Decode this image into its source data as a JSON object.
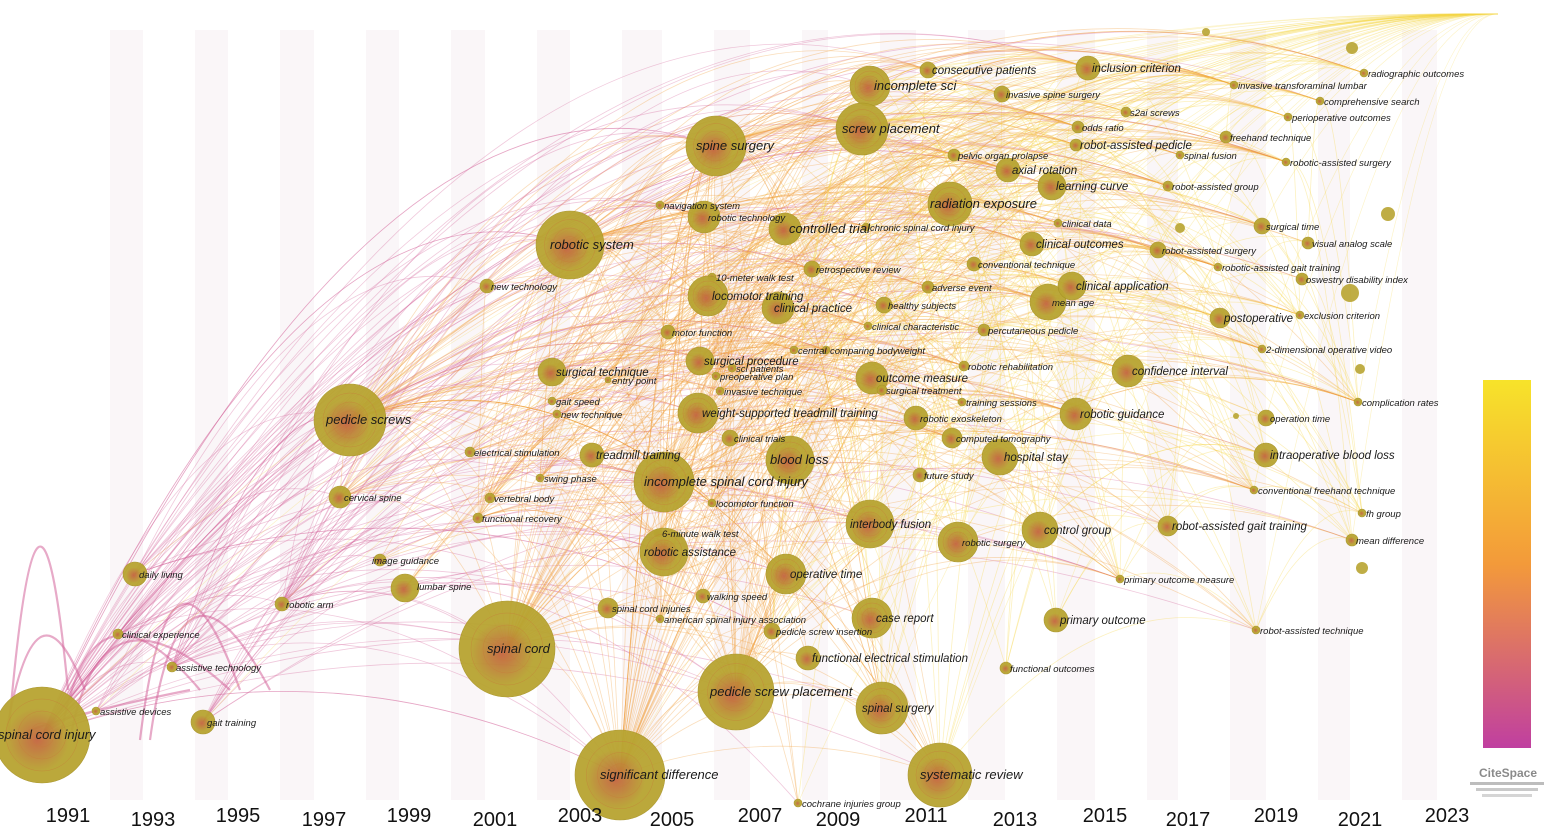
{
  "years": [
    "1991",
    "1993",
    "1995",
    "1997",
    "1999",
    "2001",
    "2003",
    "2005",
    "2007",
    "2009",
    "2011",
    "2013",
    "2015",
    "2017",
    "2019",
    "2021",
    "2023"
  ],
  "colors": {
    "scale_top": "#f7e32a",
    "scale_mid": "#f39a3a",
    "scale_bottom": "#c03fa0",
    "node_fill": "#b8a431",
    "node_core": "#c4643e",
    "link_early": "#d4659a",
    "link_mid": "#f0a040",
    "link_late": "#f5d84a"
  },
  "logo": "CiteSpace",
  "nodes": [
    {
      "label": "spinal cord injury",
      "size": "lg",
      "r": 48
    },
    {
      "label": "assistive devices",
      "size": "sm",
      "r": 4
    },
    {
      "label": "gait training",
      "size": "sm",
      "r": 12
    },
    {
      "label": "assistive technology",
      "size": "sm",
      "r": 5
    },
    {
      "label": "clinical experience",
      "size": "sm",
      "r": 5
    },
    {
      "label": "daily living",
      "size": "sm",
      "r": 12
    },
    {
      "label": "robotic arm",
      "size": "sm",
      "r": 7
    },
    {
      "label": "lumbar spine",
      "size": "sm",
      "r": 14
    },
    {
      "label": "image guidance",
      "size": "sm",
      "r": 6
    },
    {
      "label": "cervical spine",
      "size": "sm",
      "r": 11
    },
    {
      "label": "pedicle screws",
      "size": "lg",
      "r": 36
    },
    {
      "label": "spinal cord",
      "size": "lg",
      "r": 48
    },
    {
      "label": "significant difference",
      "size": "lg",
      "r": 45
    },
    {
      "label": "robotic system",
      "size": "lg",
      "r": 34
    },
    {
      "label": "new technology",
      "size": "sm",
      "r": 7
    },
    {
      "label": "spine surgery",
      "size": "lg",
      "r": 30
    },
    {
      "label": "electrical stimulation",
      "size": "sm",
      "r": 5
    },
    {
      "label": "vertebral body",
      "size": "sm",
      "r": 5
    },
    {
      "label": "functional recovery",
      "size": "sm",
      "r": 5
    },
    {
      "label": "surgical technique",
      "size": "md",
      "r": 14
    },
    {
      "label": "entry point",
      "size": "sm",
      "r": 3
    },
    {
      "label": "gait speed",
      "size": "sm",
      "r": 4
    },
    {
      "label": "new technique",
      "size": "sm",
      "r": 4
    },
    {
      "label": "treadmill training",
      "size": "md",
      "r": 12
    },
    {
      "label": "swing phase",
      "size": "sm",
      "r": 4
    },
    {
      "label": "incomplete spinal cord injury",
      "size": "lg",
      "r": 30
    },
    {
      "label": "6-minute walk test",
      "size": "sm",
      "r": 4
    },
    {
      "label": "robotic assistance",
      "size": "md",
      "r": 24
    },
    {
      "label": "walking speed",
      "size": "sm",
      "r": 7
    },
    {
      "label": "spinal cord injuries",
      "size": "sm",
      "r": 10
    },
    {
      "label": "american spinal injury association",
      "size": "sm",
      "r": 4
    },
    {
      "label": "pedicle screw placement",
      "size": "lg",
      "r": 38
    },
    {
      "label": "navigation system",
      "size": "sm",
      "r": 4
    },
    {
      "label": "robotic technology",
      "size": "sm",
      "r": 16
    },
    {
      "label": "motor function",
      "size": "sm",
      "r": 7
    },
    {
      "label": "10-meter walk test",
      "size": "sm",
      "r": 4
    },
    {
      "label": "locomotor training",
      "size": "md",
      "r": 20
    },
    {
      "label": "clinical practice",
      "size": "md",
      "r": 16
    },
    {
      "label": "surgical procedure",
      "size": "md",
      "r": 14
    },
    {
      "label": "sci patients",
      "size": "sm",
      "r": 4
    },
    {
      "label": "preoperative plan",
      "size": "sm",
      "r": 4
    },
    {
      "label": "invasive technique",
      "size": "sm",
      "r": 4
    },
    {
      "label": "weight-supported treadmill training",
      "size": "md",
      "r": 20
    },
    {
      "label": "clinical trials",
      "size": "sm",
      "r": 8
    },
    {
      "label": "blood loss",
      "size": "lg",
      "r": 24
    },
    {
      "label": "locomotor function",
      "size": "sm",
      "r": 4
    },
    {
      "label": "operative time",
      "size": "md",
      "r": 20
    },
    {
      "label": "case report",
      "size": "md",
      "r": 20
    },
    {
      "label": "pedicle screw insertion",
      "size": "sm",
      "r": 8
    },
    {
      "label": "functional electrical stimulation",
      "size": "md",
      "r": 12
    },
    {
      "label": "cochrane injuries group",
      "size": "sm",
      "r": 4
    },
    {
      "label": "spinal surgery",
      "size": "md",
      "r": 26
    },
    {
      "label": "controlled trial",
      "size": "lg",
      "r": 16
    },
    {
      "label": "chronic spinal cord injury",
      "size": "sm",
      "r": 4
    },
    {
      "label": "retrospective review",
      "size": "sm",
      "r": 8
    },
    {
      "label": "incomplete sci",
      "size": "lg",
      "r": 20
    },
    {
      "label": "screw placement",
      "size": "lg",
      "r": 26
    },
    {
      "label": "consecutive patients",
      "size": "md",
      "r": 8
    },
    {
      "label": "radiation exposure",
      "size": "lg",
      "r": 22
    },
    {
      "label": "healthy subjects",
      "size": "sm",
      "r": 8
    },
    {
      "label": "clinical characteristic",
      "size": "sm",
      "r": 4
    },
    {
      "label": "adverse event",
      "size": "sm",
      "r": 6
    },
    {
      "label": "central",
      "size": "sm",
      "r": 4
    },
    {
      "label": "comparing bodyweight",
      "size": "sm",
      "r": 4
    },
    {
      "label": "outcome measure",
      "size": "md",
      "r": 16
    },
    {
      "label": "surgical treatment",
      "size": "sm",
      "r": 5
    },
    {
      "label": "robotic rehabilitation",
      "size": "sm",
      "r": 5
    },
    {
      "label": "training sessions",
      "size": "sm",
      "r": 4
    },
    {
      "label": "robotic exoskeleton",
      "size": "sm",
      "r": 12
    },
    {
      "label": "computed tomography",
      "size": "sm",
      "r": 10
    },
    {
      "label": "future study",
      "size": "sm",
      "r": 7
    },
    {
      "label": "hospital stay",
      "size": "md",
      "r": 18
    },
    {
      "label": "interbody fusion",
      "size": "md",
      "r": 24
    },
    {
      "label": "robotic surgery",
      "size": "sm",
      "r": 20
    },
    {
      "label": "control group",
      "size": "md",
      "r": 18
    },
    {
      "label": "mean age",
      "size": "sm",
      "r": 18
    },
    {
      "label": "percutaneous pedicle",
      "size": "sm",
      "r": 6
    },
    {
      "label": "conventional technique",
      "size": "sm",
      "r": 7
    },
    {
      "label": "clinical outcomes",
      "size": "md",
      "r": 12
    },
    {
      "label": "clinical data",
      "size": "sm",
      "r": 4
    },
    {
      "label": "learning curve",
      "size": "md",
      "r": 14
    },
    {
      "label": "axial rotation",
      "size": "md",
      "r": 12
    },
    {
      "label": "pelvic organ prolapse",
      "size": "sm",
      "r": 6
    },
    {
      "label": "robot-assisted pedicle",
      "size": "md",
      "r": 6
    },
    {
      "label": "odds ratio",
      "size": "sm",
      "r": 6
    },
    {
      "label": "s2ai screws",
      "size": "sm",
      "r": 5
    },
    {
      "label": "invasive spine surgery",
      "size": "sm",
      "r": 8
    },
    {
      "label": "inclusion criterion",
      "size": "md",
      "r": 12
    },
    {
      "label": "clinical application",
      "size": "md",
      "r": 14
    },
    {
      "label": "confidence interval",
      "size": "md",
      "r": 16
    },
    {
      "label": "robotic guidance",
      "size": "md",
      "r": 16
    },
    {
      "label": "primary outcome",
      "size": "md",
      "r": 12
    },
    {
      "label": "functional outcomes",
      "size": "sm",
      "r": 6
    },
    {
      "label": "primary outcome measure",
      "size": "sm",
      "r": 4
    },
    {
      "label": "robot-assisted gait training",
      "size": "md",
      "r": 10
    },
    {
      "label": "robot-assisted technique",
      "size": "sm",
      "r": 4
    },
    {
      "label": "systematic review",
      "size": "lg",
      "r": 32
    },
    {
      "label": "spinal fusion",
      "size": "sm",
      "r": 4
    },
    {
      "label": "freehand technique",
      "size": "sm",
      "r": 6
    },
    {
      "label": "robot-assisted group",
      "size": "sm",
      "r": 5
    },
    {
      "label": "robot-assisted surgery",
      "size": "sm",
      "r": 8
    },
    {
      "label": "surgical time",
      "size": "sm",
      "r": 8
    },
    {
      "label": "robotic-assisted gait training",
      "size": "sm",
      "r": 4
    },
    {
      "label": "postoperative",
      "size": "md",
      "r": 10
    },
    {
      "label": "exclusion criterion",
      "size": "sm",
      "r": 4
    },
    {
      "label": "2-dimensional operative video",
      "size": "sm",
      "r": 4
    },
    {
      "label": "operation time",
      "size": "sm",
      "r": 8
    },
    {
      "label": "intraoperative blood loss",
      "size": "md",
      "r": 12
    },
    {
      "label": "conventional freehand technique",
      "size": "sm",
      "r": 4
    },
    {
      "label": "fh group",
      "size": "sm",
      "r": 4
    },
    {
      "label": "mean difference",
      "size": "sm",
      "r": 6
    },
    {
      "label": "complication rates",
      "size": "sm",
      "r": 4
    },
    {
      "label": "oswestry disability index",
      "size": "sm",
      "r": 6
    },
    {
      "label": "visual analog scale",
      "size": "sm",
      "r": 6
    },
    {
      "label": "robotic-assisted surgery",
      "size": "sm",
      "r": 4
    },
    {
      "label": "perioperative outcomes",
      "size": "sm",
      "r": 4
    },
    {
      "label": "comprehensive search",
      "size": "sm",
      "r": 4
    },
    {
      "label": "invasive transforaminal lumbar",
      "size": "sm",
      "r": 4
    },
    {
      "label": "radiographic outcomes",
      "size": "sm",
      "r": 4
    }
  ]
}
